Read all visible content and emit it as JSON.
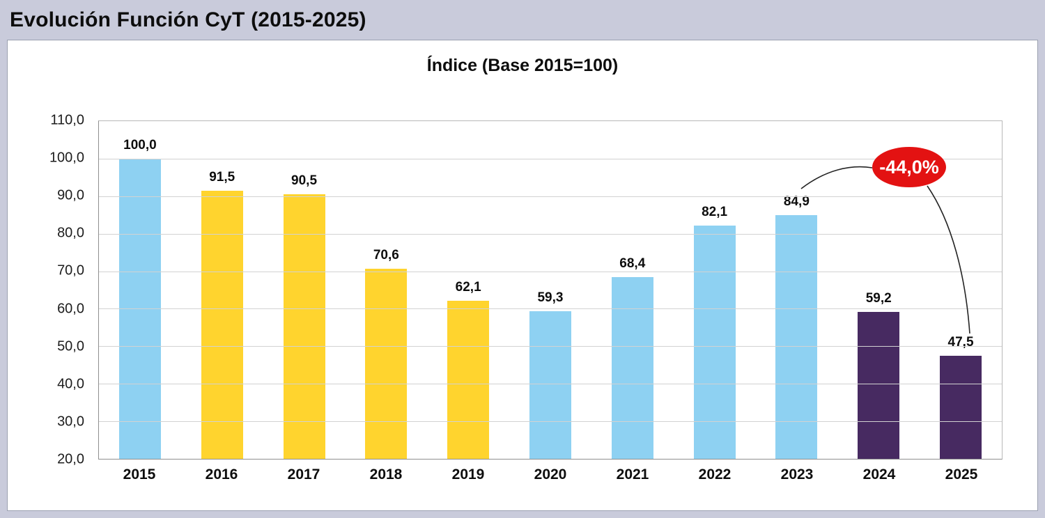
{
  "header": {
    "title": "Evolución Función CyT (2015-2025)"
  },
  "chart": {
    "title": "Índice (Base 2015=100)"
  },
  "colors": {
    "page_background": "#c9cbdb",
    "bar_blue": "#8ed1f2",
    "bar_yellow": "#ffd42e",
    "bar_purple": "#472a61",
    "annotation_red": "#e31212",
    "gridline": "#d2d2d2"
  },
  "chart_data": {
    "type": "bar",
    "title": "Índice (Base 2015=100)",
    "categories": [
      "2015",
      "2016",
      "2017",
      "2018",
      "2019",
      "2020",
      "2021",
      "2022",
      "2023",
      "2024",
      "2025"
    ],
    "values": [
      100.0,
      91.5,
      90.5,
      70.6,
      62.1,
      59.3,
      68.4,
      82.1,
      84.9,
      59.2,
      47.5
    ],
    "value_labels": [
      "100,0",
      "91,5",
      "90,5",
      "70,6",
      "62,1",
      "59,3",
      "68,4",
      "82,1",
      "84,9",
      "59,2",
      "47,5"
    ],
    "bar_colors": [
      "#8ed1f2",
      "#ffd42e",
      "#ffd42e",
      "#ffd42e",
      "#ffd42e",
      "#8ed1f2",
      "#8ed1f2",
      "#8ed1f2",
      "#8ed1f2",
      "#472a61",
      "#472a61"
    ],
    "ylim": [
      20,
      110
    ],
    "yticks": [
      110,
      100,
      90,
      80,
      70,
      60,
      50,
      40,
      30,
      20
    ],
    "ytick_labels": [
      "110,0",
      "100,0",
      "90,0",
      "80,0",
      "70,0",
      "60,0",
      "50,0",
      "40,0",
      "30,0",
      "20,0"
    ],
    "grid": true,
    "legend": "none",
    "annotation": {
      "text": "-44,0%",
      "color": "#e31212",
      "relates": "drop from 2015 base to 2025"
    }
  }
}
